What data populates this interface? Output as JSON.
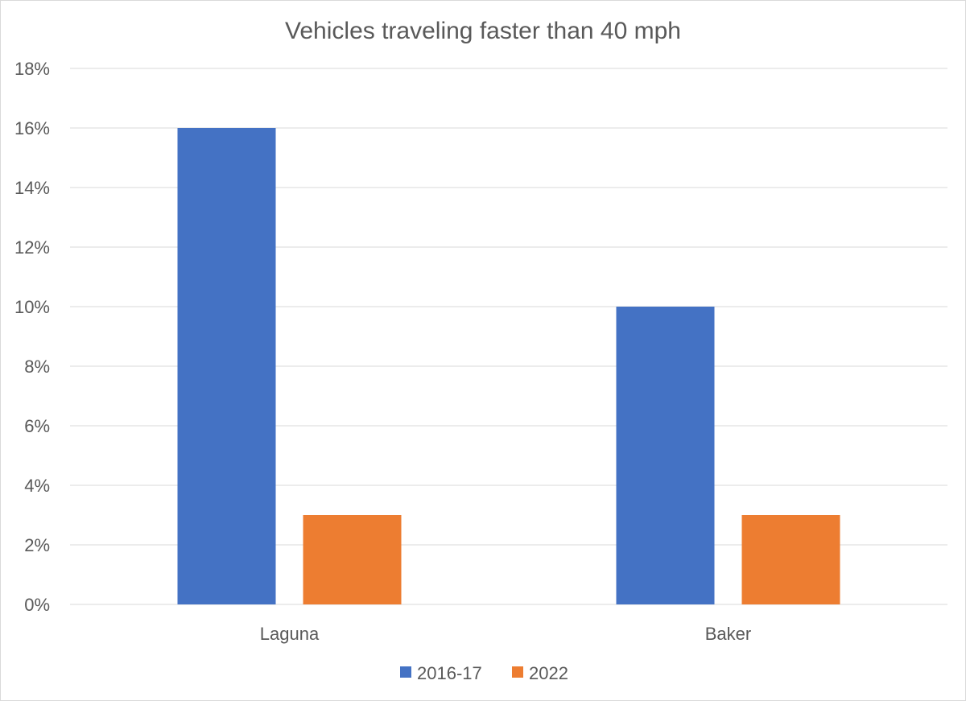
{
  "chart_data": {
    "type": "bar",
    "title": "Vehicles traveling faster than 40 mph",
    "xlabel": "",
    "ylabel": "",
    "categories": [
      "Laguna",
      "Baker"
    ],
    "series": [
      {
        "name": "2016-17",
        "values": [
          16,
          10
        ],
        "color": "#4472C4"
      },
      {
        "name": "2022",
        "values": [
          3,
          3
        ],
        "color": "#ED7D31"
      }
    ],
    "ylim": [
      0,
      18
    ],
    "yticks": [
      0,
      2,
      4,
      6,
      8,
      10,
      12,
      14,
      16,
      18
    ],
    "ytick_format": "percent",
    "grid": true,
    "legend": "bottom"
  }
}
